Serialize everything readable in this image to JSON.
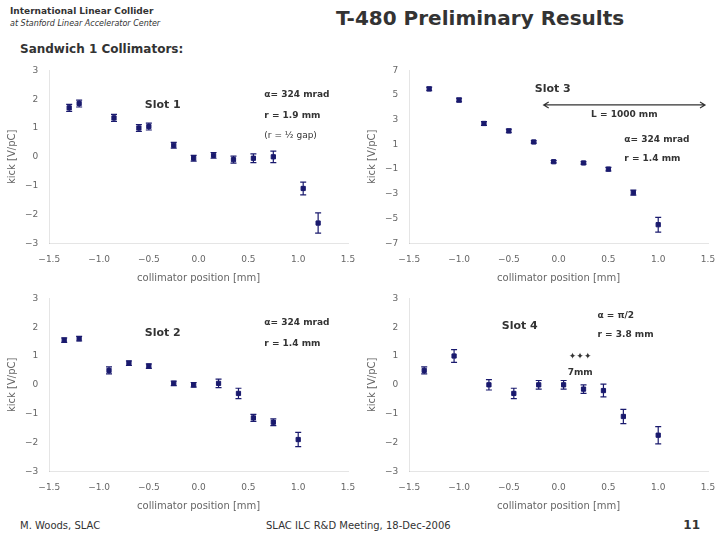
{
  "title": "T-480 Preliminary Results",
  "subtitle": "Sandwich 1 Collimators:",
  "annotations": [
    "International Linear Collider",
    "at Stanford Linear Accelerator Center",
    "M. Woods, SLAC",
    "SLAC ILC R&D Meeting, 18-Dec-2006",
    "11"
  ],
  "chart_data": [
    {
      "type": "scatter",
      "xlabel": "collimator position [mm]",
      "ylabel": "kick [V/pC]",
      "xlim": [
        -1.5,
        1.5
      ],
      "ylim": [
        -3,
        3
      ],
      "xticks": [
        {
          "value": -1.5,
          "label": "−1.5"
        },
        {
          "value": -1.0,
          "label": "−1.0"
        },
        {
          "value": -0.5,
          "label": "−0.5"
        },
        {
          "value": 0.0,
          "label": "0.0"
        },
        0.5,
        {
          "value": 1.0,
          "label": "1.0"
        },
        1.5
      ],
      "yticks": [
        {
          "value": -3,
          "label": "−3"
        },
        {
          "value": -2,
          "label": "−2"
        },
        {
          "value": -1,
          "label": "−1"
        },
        0,
        1,
        2,
        3
      ],
      "grid": false,
      "annotations": [
        "Slot 1",
        "α= 324 mrad",
        "r = 1.9 mm",
        "(r = ½ gap)"
      ],
      "x": [
        -1.3,
        -1.2,
        -0.85,
        -0.6,
        -0.5,
        -0.25,
        -0.05,
        0.15,
        0.35,
        0.55,
        0.75,
        1.05,
        1.2
      ],
      "values": [
        1.7,
        1.85,
        1.35,
        1.0,
        1.05,
        0.4,
        -0.05,
        0.05,
        -0.1,
        -0.05,
        0.0,
        -1.1,
        -2.3
      ],
      "yerr": [
        0.12,
        0.12,
        0.12,
        0.12,
        0.12,
        0.1,
        0.1,
        0.1,
        0.12,
        0.15,
        0.2,
        0.22,
        0.35
      ],
      "color": "#1a1a6e",
      "marker": "square"
    },
    {
      "type": "scatter",
      "xlabel": "collimator position [mm]",
      "ylabel": "kick [V/pC]",
      "xlim": [
        -1.5,
        1.5
      ],
      "ylim": [
        -7,
        7
      ],
      "xticks": [
        {
          "value": -1.5,
          "label": "−1.5"
        },
        {
          "value": -1.0,
          "label": "−1.0"
        },
        {
          "value": -0.5,
          "label": "−0.5"
        },
        {
          "value": 0.0,
          "label": "0.0"
        },
        0.5,
        {
          "value": 1.0,
          "label": "1.0"
        },
        1.5
      ],
      "yticks": [
        {
          "value": -7,
          "label": "−7"
        },
        {
          "value": -5,
          "label": "−5"
        },
        {
          "value": -3,
          "label": "−3"
        },
        {
          "value": -1,
          "label": "−1"
        },
        1,
        3,
        5,
        7
      ],
      "grid": false,
      "annotations": [
        "Slot 3",
        "L = 1000 mm",
        "α= 324 mrad",
        "r = 1.4 mm"
      ],
      "x": [
        -1.3,
        -1.0,
        -0.75,
        -0.5,
        -0.25,
        -0.05,
        0.25,
        0.5,
        0.75,
        1.0
      ],
      "values": [
        5.5,
        4.6,
        2.7,
        2.1,
        1.2,
        -0.4,
        -0.5,
        -1.0,
        -2.9,
        -5.5
      ],
      "yerr": [
        0.15,
        0.15,
        0.15,
        0.15,
        0.1,
        0.1,
        0.1,
        0.15,
        0.2,
        0.6
      ],
      "color": "#1a1a6e",
      "marker": "square"
    },
    {
      "type": "scatter",
      "xlabel": "collimator position [mm]",
      "ylabel": "kick [V/pC]",
      "xlim": [
        -1.5,
        1.5
      ],
      "ylim": [
        -3,
        3
      ],
      "xticks": [
        {
          "value": -1.5,
          "label": "−1.5"
        },
        {
          "value": -1.0,
          "label": "−1.0"
        },
        {
          "value": -0.5,
          "label": "−0.5"
        },
        {
          "value": 0.0,
          "label": "0.0"
        },
        0.5,
        {
          "value": 1.0,
          "label": "1.0"
        },
        1.5
      ],
      "yticks": [
        {
          "value": -3,
          "label": "−3"
        },
        {
          "value": -2,
          "label": "−2"
        },
        {
          "value": -1,
          "label": "−1"
        },
        0,
        1,
        2,
        3
      ],
      "grid": false,
      "annotations": [
        "Slot 2",
        "α= 324 mrad",
        "r = 1.4 mm"
      ],
      "x": [
        -1.35,
        -1.2,
        -0.9,
        -0.7,
        -0.5,
        -0.25,
        -0.05,
        0.2,
        0.4,
        0.55,
        0.75,
        1.0
      ],
      "values": [
        1.55,
        1.6,
        0.5,
        0.75,
        0.65,
        0.05,
        0.0,
        0.05,
        -0.3,
        -1.15,
        -1.3,
        -1.9
      ],
      "yerr": [
        0.08,
        0.08,
        0.12,
        0.08,
        0.08,
        0.08,
        0.08,
        0.15,
        0.18,
        0.12,
        0.12,
        0.25
      ],
      "color": "#1a1a6e",
      "marker": "square"
    },
    {
      "type": "scatter",
      "xlabel": "collimator position [mm]",
      "ylabel": "kick [V/pC]",
      "xlim": [
        -1.5,
        1.5
      ],
      "ylim": [
        -3,
        3
      ],
      "xticks": [
        {
          "value": -1.5,
          "label": "−1.5"
        },
        {
          "value": -1.0,
          "label": "−1.0"
        },
        {
          "value": -0.5,
          "label": "−0.5"
        },
        {
          "value": 0.0,
          "label": "0.0"
        },
        0.5,
        {
          "value": 1.0,
          "label": "1.0"
        },
        1.5
      ],
      "yticks": [
        {
          "value": -3,
          "label": "−3"
        },
        {
          "value": -2,
          "label": "−2"
        },
        {
          "value": -1,
          "label": "−1"
        },
        0,
        1,
        2,
        3
      ],
      "grid": false,
      "annotations": [
        "Slot 4",
        "α = π/2",
        "r = 3.8 mm",
        "✦✦✦",
        "7mm"
      ],
      "x": [
        -1.35,
        -1.05,
        -0.7,
        -0.45,
        -0.2,
        0.05,
        0.25,
        0.45,
        0.65,
        1.0
      ],
      "values": [
        0.5,
        1.0,
        0.0,
        -0.3,
        0.0,
        0.0,
        -0.15,
        -0.2,
        -1.1,
        -1.75
      ],
      "yerr": [
        0.12,
        0.22,
        0.18,
        0.18,
        0.15,
        0.15,
        0.15,
        0.22,
        0.25,
        0.3
      ],
      "color": "#1a1a6e",
      "marker": "square"
    }
  ]
}
